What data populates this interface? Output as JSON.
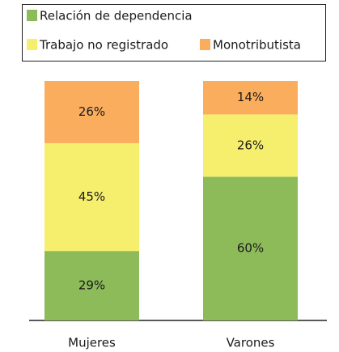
{
  "chart_data": {
    "type": "stacked_bar",
    "categories": [
      "Mujeres",
      "Varones"
    ],
    "series": [
      {
        "name": "Relación de dependencia",
        "color": "#8dbb5a",
        "values": [
          29,
          60
        ],
        "value_labels": [
          "29%",
          "60%"
        ]
      },
      {
        "name": "Trabajo no registrado",
        "color": "#f6ef6e",
        "values": [
          45,
          26
        ],
        "value_labels": [
          "45%",
          "26%"
        ]
      },
      {
        "name": "Monotributista",
        "color": "#fbad5e",
        "values": [
          26,
          14
        ],
        "value_labels": [
          "26%",
          "14%"
        ]
      }
    ],
    "ylim": [
      0,
      100
    ]
  }
}
